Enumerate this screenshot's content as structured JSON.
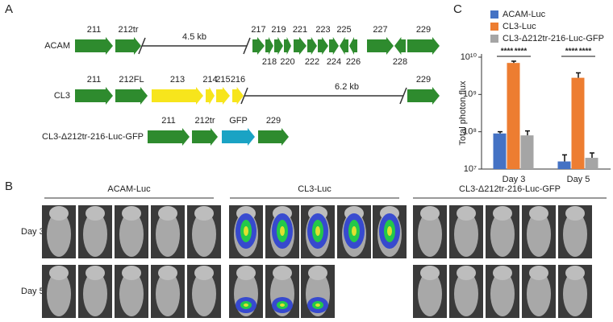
{
  "panel_a": {
    "label": "A",
    "rows": [
      {
        "name": "ACAM",
        "distance": "4.5 kb",
        "genes": [
          {
            "label": "211",
            "color": "#2e8b2e"
          },
          {
            "label": "212tr",
            "color": "#2e8b2e"
          },
          {
            "label": "217",
            "color": "#2e8b2e"
          },
          {
            "label": "218",
            "color": "#2e8b2e"
          },
          {
            "label": "219",
            "color": "#2e8b2e"
          },
          {
            "label": "220",
            "color": "#2e8b2e"
          },
          {
            "label": "221",
            "color": "#2e8b2e"
          },
          {
            "label": "222",
            "color": "#2e8b2e"
          },
          {
            "label": "223",
            "color": "#2e8b2e"
          },
          {
            "label": "224",
            "color": "#2e8b2e"
          },
          {
            "label": "225",
            "color": "#2e8b2e"
          },
          {
            "label": "226",
            "color": "#2e8b2e"
          },
          {
            "label": "227",
            "color": "#2e8b2e"
          },
          {
            "label": "228",
            "color": "#2e8b2e"
          },
          {
            "label": "229",
            "color": "#2e8b2e"
          }
        ]
      },
      {
        "name": "CL3",
        "distance": "6.2 kb",
        "genes": [
          {
            "label": "211",
            "color": "#2e8b2e"
          },
          {
            "label": "212FL",
            "color": "#2e8b2e"
          },
          {
            "label": "213",
            "color": "#f7e51c"
          },
          {
            "label": "214",
            "color": "#f7e51c"
          },
          {
            "label": "215",
            "color": "#f7e51c"
          },
          {
            "label": "216",
            "color": "#f7e51c"
          },
          {
            "label": "229",
            "color": "#2e8b2e"
          }
        ]
      },
      {
        "name": "CL3-Δ212tr-216-Luc-GFP",
        "genes": [
          {
            "label": "211",
            "color": "#2e8b2e"
          },
          {
            "label": "212tr",
            "color": "#2e8b2e"
          },
          {
            "label": "GFP",
            "color": "#1aa3c4"
          },
          {
            "label": "229",
            "color": "#2e8b2e"
          }
        ]
      }
    ]
  },
  "panel_b": {
    "label": "B",
    "groups": [
      "ACAM-Luc",
      "CL3-Luc",
      "CL3-Δ212tr-216-Luc-GFP"
    ],
    "days": [
      "Day 3",
      "Day 5"
    ]
  },
  "chart_data": {
    "type": "bar",
    "panel_label": "C",
    "y_label": "Total photon flux",
    "log_y": true,
    "legend": "top",
    "categories": [
      "Day 3",
      "Day 5"
    ],
    "series": [
      {
        "name": "ACAM-Luc",
        "color": "#4472c4",
        "values": [
          90000000,
          16000000
        ],
        "errors": [
          10000000,
          8000000
        ]
      },
      {
        "name": "CL3-Luc",
        "color": "#ed7d31",
        "values": [
          7000000000,
          2800000000
        ],
        "errors": [
          800000000,
          1000000000
        ]
      },
      {
        "name": "CL3-Δ212tr-216-Luc-GFP",
        "color": "#a5a5a5",
        "values": [
          80000000,
          20000000
        ],
        "errors": [
          25000000,
          7000000
        ]
      }
    ],
    "ylim": [
      10000000,
      10000000000
    ],
    "yticks": [
      {
        "value": 10000000,
        "label": "10⁷"
      },
      {
        "value": 100000000,
        "label": "10⁸"
      },
      {
        "value": 1000000000,
        "label": "10⁹"
      },
      {
        "value": 10000000000,
        "label": "10¹⁰"
      }
    ],
    "annotations": [
      "****",
      "****",
      "****",
      "****"
    ]
  }
}
